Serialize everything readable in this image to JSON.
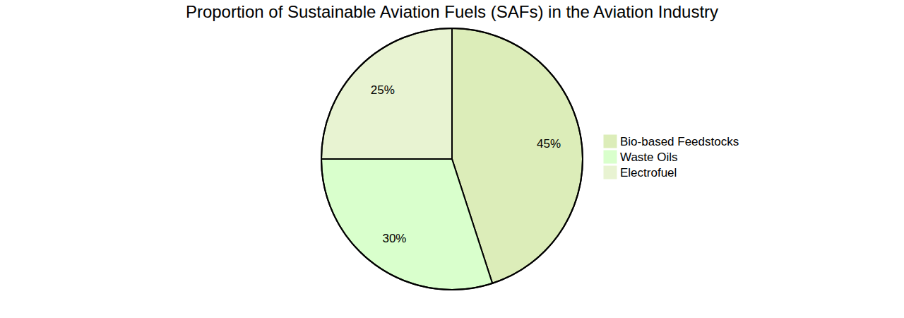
{
  "chart_data": {
    "type": "pie",
    "title": "Proportion of Sustainable Aviation Fuels (SAFs) in the Aviation Industry",
    "categories": [
      "Bio-based Feedstocks",
      "Waste Oils",
      "Electrofuel"
    ],
    "values": [
      45,
      30,
      25
    ],
    "value_labels": [
      "45%",
      "30%",
      "25%"
    ],
    "colors": [
      "#dcedb9",
      "#d9ffcc",
      "#e8f3d2"
    ],
    "data_labels": true,
    "legend": "right"
  }
}
